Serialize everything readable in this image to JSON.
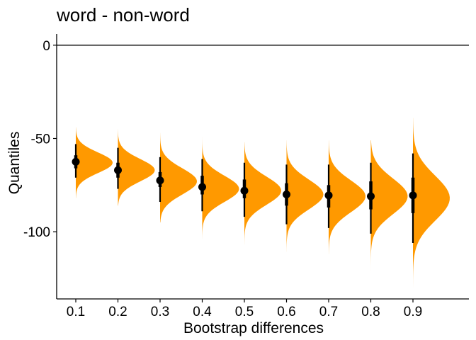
{
  "chart_data": {
    "type": "scatter",
    "subtype": "raincloud-halfviolin",
    "title": "word - non-word",
    "xlabel": "Bootstrap differences",
    "ylabel": "Quantiles",
    "categories": [
      "0.1",
      "0.2",
      "0.3",
      "0.4",
      "0.5",
      "0.6",
      "0.7",
      "0.8",
      "0.9"
    ],
    "yticks": [
      0,
      -50,
      -100
    ],
    "ytick_labels": [
      "0",
      "-50",
      "-100"
    ],
    "ylim": [
      -136,
      6
    ],
    "reference_line_y": 0,
    "grid": false,
    "colors": {
      "violin": "#FF9900",
      "point": "#000000"
    },
    "point_estimates": [
      -62.5,
      -67,
      -72.5,
      -76,
      -78,
      -80,
      -80.5,
      -81,
      -80.5
    ],
    "interval_inner": [
      [
        -66,
        -59
      ],
      [
        -71,
        -63
      ],
      [
        -76,
        -68
      ],
      [
        -80,
        -70
      ],
      [
        -82,
        -72
      ],
      [
        -86,
        -74
      ],
      [
        -87,
        -75
      ],
      [
        -88,
        -73
      ],
      [
        -90,
        -71
      ]
    ],
    "interval_outer": [
      [
        -71,
        -53
      ],
      [
        -77,
        -55
      ],
      [
        -84,
        -60
      ],
      [
        -89,
        -61
      ],
      [
        -92,
        -63
      ],
      [
        -96,
        -64
      ],
      [
        -98,
        -64
      ],
      [
        -101,
        -63
      ],
      [
        -106,
        -58
      ]
    ],
    "distribution_range": [
      [
        -82,
        -44
      ],
      [
        -86,
        -45
      ],
      [
        -95,
        -47
      ],
      [
        -104,
        -49
      ],
      [
        -107,
        -52
      ],
      [
        -111,
        -51
      ],
      [
        -112,
        -51
      ],
      [
        -122,
        -51
      ],
      [
        -130,
        -39
      ]
    ],
    "distribution_mode": [
      -63,
      -67,
      -73,
      -77,
      -78,
      -80,
      -81,
      -81,
      -82
    ],
    "distribution_sd": [
      5.5,
      6,
      7,
      7,
      7.5,
      8,
      8.5,
      9.5,
      12
    ]
  }
}
